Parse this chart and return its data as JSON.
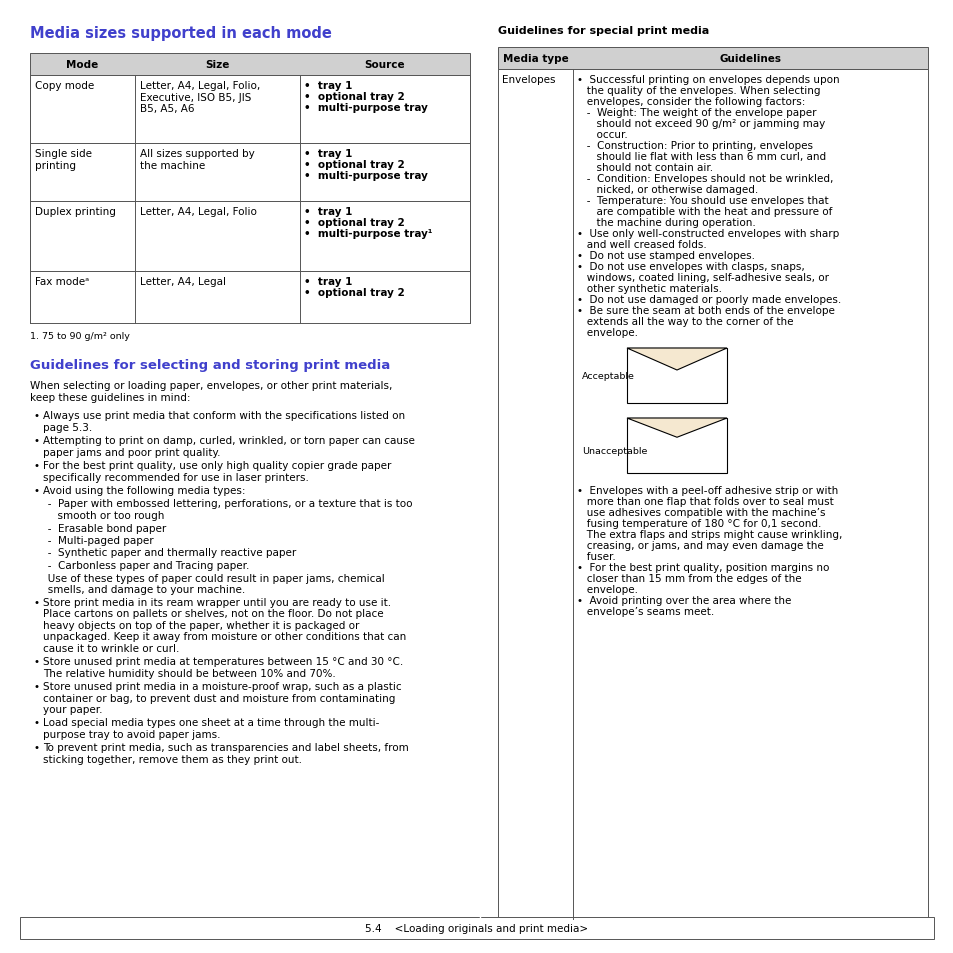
{
  "title_left": "Media sizes supported in each mode",
  "title_right": "Guidelines for special print media",
  "title_color": "#4040cc",
  "bg_color": "#ffffff",
  "footer_text": "5.4    <Loading originals and print media>",
  "table1_headers": [
    "Mode",
    "Size",
    "Source"
  ],
  "table1_rows": [
    {
      "mode": "Copy mode",
      "size": "Letter, A4, Legal, Folio,\nExecutive, ISO B5, JIS\nB5, A5, A6",
      "source": "•  tray 1\n•  optional tray 2\n•  multi-purpose tray"
    },
    {
      "mode": "Single side\nprinting",
      "size": "All sizes supported by\nthe machine",
      "source": "•  tray 1\n•  optional tray 2\n•  multi-purpose tray"
    },
    {
      "mode": "Duplex printing",
      "size": "Letter, A4, Legal, Folio",
      "source": "•  tray 1\n•  optional tray 2\n•  multi-purpose tray¹"
    },
    {
      "mode": "Fax modeᵃ",
      "size": "Letter, A4, Legal",
      "source": "•  tray 1\n•  optional tray 2"
    }
  ],
  "footnote1": "1. 75 to 90 g/m² only",
  "section2_title": "Guidelines for selecting and storing print media",
  "section2_intro": "When selecting or loading paper, envelopes, or other print materials,\nkeep these guidelines in mind:",
  "section2_bullets": [
    "Always use print media that conform with the specifications listed on\npage 5.3.",
    "Attempting to print on damp, curled, wrinkled, or torn paper can cause\npaper jams and poor print quality.",
    "For the best print quality, use only high quality copier grade paper\nspecifically recommended for use in laser printers.",
    "Avoid using the following media types:\n  -  Paper with embossed lettering, perforations, or a texture that is too\n     smooth or too rough\n  -  Erasable bond paper\n  -  Multi-paged paper\n  -  Synthetic paper and thermally reactive paper\n  -  Carbonless paper and Tracing paper.\n  Use of these types of paper could result in paper jams, chemical\n  smells, and damage to your machine.",
    "Store print media in its ream wrapper until you are ready to use it.\nPlace cartons on pallets or shelves, not on the floor. Do not place\nheavy objects on top of the paper, whether it is packaged or\nunpackaged. Keep it away from moisture or other conditions that can\ncause it to wrinkle or curl.",
    "Store unused print media at temperatures between 15 °C and 30 °C.\nThe relative humidity should be between 10% and 70%.",
    "Store unused print media in a moisture-proof wrap, such as a plastic\ncontainer or bag, to prevent dust and moisture from contaminating\nyour paper.",
    "Load special media types one sheet at a time through the multi-\npurpose tray to avoid paper jams.",
    "To prevent print media, such as transparencies and label sheets, from\nsticking together, remove them as they print out."
  ],
  "table2_headers": [
    "Media type",
    "Guidelines"
  ],
  "envelopes_guidelines": "• Successful printing on envelopes depends upon\n  the quality of the envelopes. When selecting\n  envelopes, consider the following factors:\n   -  Weight: The weight of the envelope paper\n      should not exceed 90 g/m² or jamming may\n      occur.\n   -  Construction: Prior to printing, envelopes\n      should lie flat with less than 6 mm curl, and\n      should not contain air.\n   -  Condition: Envelopes should not be wrinkled,\n      nicked, or otherwise damaged.\n   -  Temperature: You should use envelopes that\n      are compatible with the heat and pressure of\n      the machine during operation.\n• Use only well-constructed envelopes with sharp\n  and well creased folds.\n• Do not use stamped envelopes.\n• Do not use envelopes with clasps, snaps,\n  windows, coated lining, self-adhesive seals, or\n  other synthetic materials.\n• Do not use damaged or poorly made envelopes.\n• Be sure the seam at both ends of the envelope\n  extends all the way to the corner of the\n  envelope.",
  "envelopes_guidelines2": "• Envelopes with a peel-off adhesive strip or with\n  more than one flap that folds over to seal must\n  use adhesives compatible with the machine's\n  fusing temperature of 180 °C for 0,1 second.\n  The extra flaps and strips might cause wrinkling,\n  creasing, or jams, and may even damage the\n  fuser.\n• For the best print quality, position margins no\n  closer than 15 mm from the edges of the\n  envelope.\n• Avoid printing over the area where the\n  envelope's seams meet."
}
